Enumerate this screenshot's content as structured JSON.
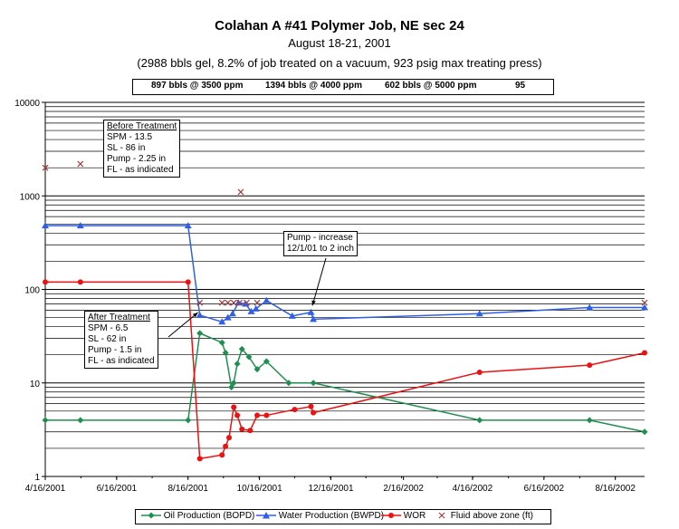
{
  "chart_data": {
    "type": "line",
    "title": "Colahan A #41 Polymer Job, NE sec 24",
    "subtitle_1": "August 18-21, 2001",
    "subtitle_2": "(2988 bbls gel, 8.2% of job treated on a vacuum, 923 psig max treating press)",
    "concentrations": [
      "897 bbls @ 3500 ppm",
      "1394 bbls @ 4000 ppm",
      "602 bbls @ 5000 ppm",
      "95"
    ],
    "y_scale": "log",
    "ylim": [
      1,
      10000
    ],
    "y_ticks": [
      "10000",
      "1000",
      "100",
      "10",
      "1"
    ],
    "xlim": [
      "2001-04-16",
      "2002-09-10"
    ],
    "x_ticks": [
      "4/16/2001",
      "6/16/2001",
      "8/16/2001",
      "10/16/2001",
      "12/16/2001",
      "2/16/2002",
      "4/16/2002",
      "6/16/2002",
      "8/16/2002"
    ],
    "x_tick_dates": [
      "2001-04-16",
      "2001-06-16",
      "2001-08-16",
      "2001-10-16",
      "2001-12-16",
      "2002-02-16",
      "2002-04-16",
      "2002-06-16",
      "2002-08-16"
    ],
    "grid": "horizontal",
    "legend_position": "bottom",
    "series": [
      {
        "name": "Oil Production (BOPD)",
        "color": "#1f8f4f",
        "marker": "diamond",
        "points": [
          [
            "2001-04-16",
            4
          ],
          [
            "2001-05-16",
            4
          ],
          [
            "2001-08-16",
            4
          ],
          [
            "2001-08-26",
            34
          ],
          [
            "2001-09-14",
            27
          ],
          [
            "2001-09-17",
            21
          ],
          [
            "2001-09-22",
            9
          ],
          [
            "2001-09-24",
            10
          ],
          [
            "2001-09-27",
            16
          ],
          [
            "2001-10-01",
            23
          ],
          [
            "2001-10-07",
            19
          ],
          [
            "2001-10-14",
            14
          ],
          [
            "2001-10-22",
            17
          ],
          [
            "2001-11-10",
            10
          ],
          [
            "2001-12-01",
            10
          ],
          [
            "2002-04-22",
            4
          ],
          [
            "2002-07-25",
            4
          ],
          [
            "2002-09-10",
            3
          ]
        ]
      },
      {
        "name": "Water Production (BWPD)",
        "color": "#2f5fe8",
        "marker": "triangle",
        "points": [
          [
            "2001-04-16",
            480
          ],
          [
            "2001-05-16",
            480
          ],
          [
            "2001-08-16",
            480
          ],
          [
            "2001-08-26",
            53
          ],
          [
            "2001-09-14",
            45
          ],
          [
            "2001-09-19",
            50
          ],
          [
            "2001-09-23",
            55
          ],
          [
            "2001-09-28",
            72
          ],
          [
            "2001-10-04",
            70
          ],
          [
            "2001-10-09",
            58
          ],
          [
            "2001-10-13",
            62
          ],
          [
            "2001-10-22",
            76
          ],
          [
            "2001-11-13",
            52
          ],
          [
            "2001-11-29",
            57
          ],
          [
            "2001-12-01",
            48
          ],
          [
            "2002-04-22",
            55
          ],
          [
            "2002-07-25",
            64
          ],
          [
            "2002-09-10",
            64
          ]
        ]
      },
      {
        "name": "WOR",
        "color": "#ee1111",
        "marker": "circle",
        "points": [
          [
            "2001-04-16",
            120
          ],
          [
            "2001-05-16",
            120
          ],
          [
            "2001-08-16",
            120
          ],
          [
            "2001-08-26",
            1.55
          ],
          [
            "2001-09-14",
            1.7
          ],
          [
            "2001-09-17",
            2.1
          ],
          [
            "2001-09-20",
            2.6
          ],
          [
            "2001-09-24",
            5.5
          ],
          [
            "2001-09-27",
            4.5
          ],
          [
            "2001-10-01",
            3.2
          ],
          [
            "2001-10-08",
            3.1
          ],
          [
            "2001-10-14",
            4.5
          ],
          [
            "2001-10-22",
            4.5
          ],
          [
            "2001-11-15",
            5.2
          ],
          [
            "2001-11-29",
            5.6
          ],
          [
            "2001-12-01",
            4.8
          ],
          [
            "2002-04-22",
            13
          ],
          [
            "2002-07-25",
            15.5
          ],
          [
            "2002-09-10",
            21
          ]
        ]
      },
      {
        "name": "Fluid above zone (ft)",
        "color": "#a04040",
        "marker": "x",
        "points": [
          [
            "2001-04-16",
            2000
          ],
          [
            "2001-05-16",
            2200
          ],
          [
            "2001-09-30",
            1100
          ],
          [
            "2001-08-26",
            72
          ],
          [
            "2001-09-14",
            72
          ],
          [
            "2001-09-19",
            72
          ],
          [
            "2001-09-24",
            72
          ],
          [
            "2001-09-29",
            72
          ],
          [
            "2001-10-05",
            72
          ],
          [
            "2001-10-14",
            72
          ],
          [
            "2002-09-10",
            72
          ]
        ]
      }
    ],
    "annotations": [
      {
        "id": "before",
        "lines": [
          "Before Treatment",
          "SPM -    13.5",
          "SL -      86 in",
          "Pump -   2.25 in",
          "FL -    as indicated"
        ]
      },
      {
        "id": "after",
        "lines": [
          "After Treatment",
          "SPM -    6.5",
          "SL -      62 in",
          "Pump -  1.5 in",
          "FL -   as indicated"
        ],
        "arrow_to": [
          "2001-08-26",
          53
        ]
      },
      {
        "id": "pump",
        "lines": [
          "Pump - increase",
          "12/1/01 to 2 inch"
        ],
        "arrow_to": [
          "2001-12-01",
          48
        ]
      }
    ]
  }
}
